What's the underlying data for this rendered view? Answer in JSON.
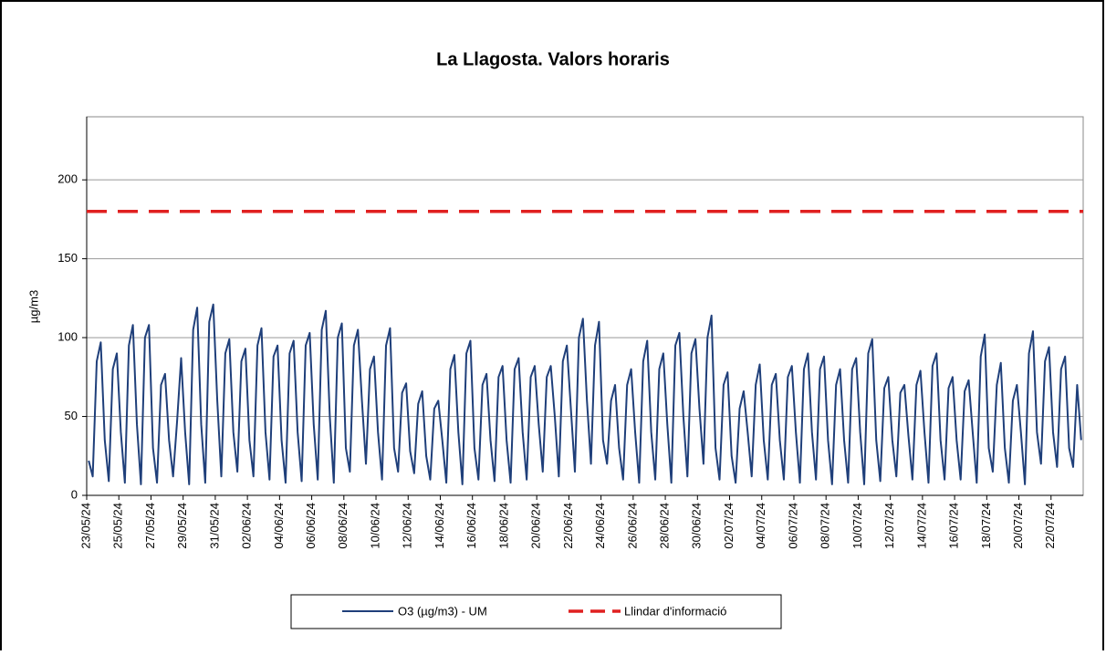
{
  "chart_data": {
    "type": "line",
    "title": "La Llagosta. Valors horaris",
    "y_label": "µg/m3",
    "ylim": [
      0,
      240
    ],
    "yticks": [
      0,
      50,
      100,
      150,
      200
    ],
    "grid": true,
    "categories": [
      "23/05/24",
      null,
      null,
      null,
      null,
      null,
      null,
      null,
      "25/05/24",
      null,
      null,
      null,
      null,
      null,
      null,
      null,
      "27/05/24",
      null,
      null,
      null,
      null,
      null,
      null,
      null,
      "29/05/24",
      null,
      null,
      null,
      null,
      null,
      null,
      null,
      "31/05/24",
      null,
      null,
      null,
      null,
      null,
      null,
      null,
      "02/06/24",
      null,
      null,
      null,
      null,
      null,
      null,
      null,
      "04/06/24",
      null,
      null,
      null,
      null,
      null,
      null,
      null,
      "06/06/24",
      null,
      null,
      null,
      null,
      null,
      null,
      null,
      "08/06/24",
      null,
      null,
      null,
      null,
      null,
      null,
      null,
      "10/06/24",
      null,
      null,
      null,
      null,
      null,
      null,
      null,
      "12/06/24",
      null,
      null,
      null,
      null,
      null,
      null,
      null,
      "14/06/24",
      null,
      null,
      null,
      null,
      null,
      null,
      null,
      "16/06/24",
      null,
      null,
      null,
      null,
      null,
      null,
      null,
      "18/06/24",
      null,
      null,
      null,
      null,
      null,
      null,
      null,
      "20/06/24",
      null,
      null,
      null,
      null,
      null,
      null,
      null,
      "22/06/24",
      null,
      null,
      null,
      null,
      null,
      null,
      null,
      "24/06/24",
      null,
      null,
      null,
      null,
      null,
      null,
      null,
      "26/06/24",
      null,
      null,
      null,
      null,
      null,
      null,
      null,
      "28/06/24",
      null,
      null,
      null,
      null,
      null,
      null,
      null,
      "30/06/24",
      null,
      null,
      null,
      null,
      null,
      null,
      null,
      "02/07/24",
      null,
      null,
      null,
      null,
      null,
      null,
      null,
      "04/07/24",
      null,
      null,
      null,
      null,
      null,
      null,
      null,
      "06/07/24",
      null,
      null,
      null,
      null,
      null,
      null,
      null,
      "08/07/24",
      null,
      null,
      null,
      null,
      null,
      null,
      null,
      "10/07/24",
      null,
      null,
      null,
      null,
      null,
      null,
      null,
      "12/07/24",
      null,
      null,
      null,
      null,
      null,
      null,
      null,
      "14/07/24",
      null,
      null,
      null,
      null,
      null,
      null,
      null,
      "16/07/24",
      null,
      null,
      null,
      null,
      null,
      null,
      null,
      "18/07/24",
      null,
      null,
      null,
      null,
      null,
      null,
      null,
      "20/07/24",
      null,
      null,
      null,
      null,
      null,
      null,
      null,
      "22/07/24",
      null,
      null,
      null,
      null,
      null,
      null,
      null
    ],
    "series": [
      {
        "name": "O3 (µg/m3) - UM",
        "color": "#1f3f7a",
        "values": [
          22,
          12,
          85,
          97,
          35,
          9,
          80,
          90,
          40,
          8,
          95,
          108,
          45,
          7,
          100,
          108,
          30,
          8,
          70,
          77,
          35,
          12,
          47,
          87,
          40,
          7,
          105,
          119,
          45,
          8,
          110,
          121,
          60,
          12,
          90,
          99,
          40,
          15,
          85,
          93,
          35,
          12,
          95,
          106,
          40,
          10,
          88,
          95,
          35,
          8,
          90,
          98,
          40,
          9,
          95,
          103,
          45,
          10,
          105,
          117,
          50,
          8,
          100,
          109,
          30,
          15,
          95,
          105,
          60,
          20,
          80,
          88,
          40,
          10,
          95,
          106,
          30,
          15,
          65,
          71,
          28,
          14,
          58,
          66,
          25,
          10,
          55,
          60,
          35,
          8,
          80,
          89,
          40,
          7,
          90,
          98,
          30,
          10,
          70,
          77,
          35,
          9,
          75,
          82,
          35,
          8,
          80,
          87,
          40,
          10,
          75,
          82,
          45,
          15,
          75,
          82,
          50,
          12,
          85,
          95,
          55,
          15,
          100,
          112,
          60,
          20,
          95,
          110,
          35,
          20,
          60,
          70,
          30,
          10,
          70,
          80,
          40,
          8,
          85,
          98,
          40,
          10,
          80,
          90,
          45,
          8,
          95,
          103,
          50,
          12,
          90,
          99,
          55,
          20,
          100,
          114,
          30,
          10,
          70,
          78,
          25,
          8,
          55,
          66,
          40,
          12,
          70,
          83,
          35,
          10,
          70,
          77,
          35,
          10,
          75,
          82,
          40,
          8,
          80,
          90,
          40,
          10,
          80,
          88,
          35,
          7,
          70,
          80,
          35,
          8,
          80,
          87,
          40,
          7,
          90,
          99,
          35,
          9,
          68,
          75,
          35,
          12,
          65,
          70,
          38,
          10,
          70,
          79,
          40,
          8,
          82,
          90,
          35,
          10,
          68,
          75,
          35,
          10,
          66,
          73,
          40,
          8,
          88,
          102,
          30,
          15,
          70,
          84,
          30,
          8,
          60,
          70,
          40,
          7,
          90,
          104,
          40,
          20,
          85,
          94,
          40,
          18,
          80,
          88,
          30,
          18,
          70,
          35
        ]
      }
    ],
    "threshold": {
      "name": "Llindar d'informació",
      "value": 180,
      "color": "#e02020"
    }
  }
}
